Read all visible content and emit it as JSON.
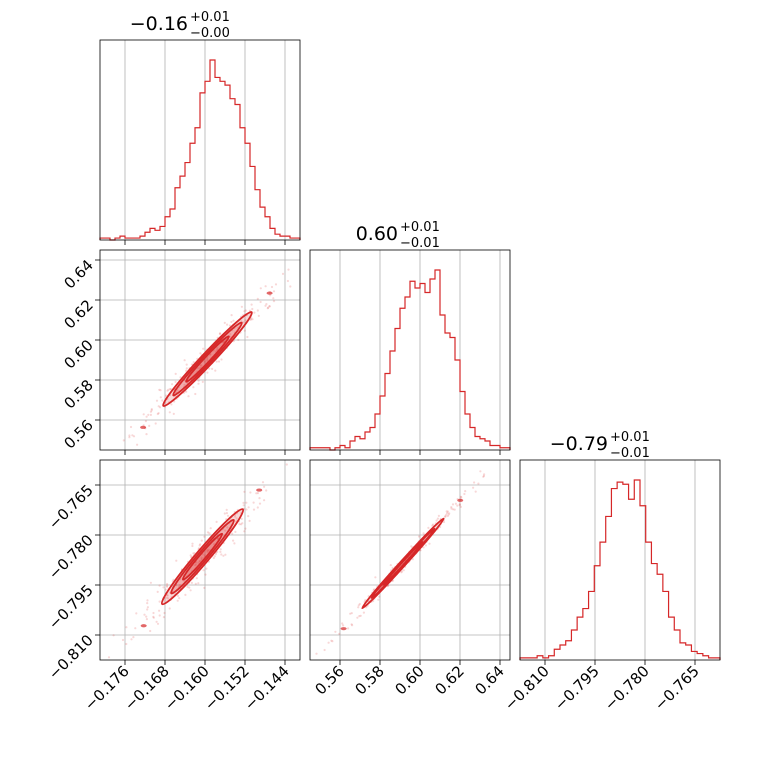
{
  "chart_data": {
    "type": "corner",
    "color": "#d62728",
    "grid": true,
    "parameters": [
      {
        "title_main": "−0.16",
        "title_plus": "+0.01",
        "title_minus": "−0.00",
        "range": [
          -0.181,
          -0.141
        ],
        "ticks": [
          -0.176,
          -0.168,
          -0.16,
          -0.152,
          -0.144
        ],
        "tick_labels": [
          "−0.176",
          "−0.168",
          "−0.160",
          "−0.152",
          "−0.144"
        ],
        "histogram": [
          1,
          1,
          0,
          1,
          2,
          1,
          1,
          1,
          2,
          4,
          6,
          5,
          7,
          12,
          16,
          27,
          33,
          40,
          50,
          58,
          76,
          82,
          93,
          84,
          82,
          80,
          73,
          70,
          58,
          50,
          38,
          26,
          17,
          12,
          6,
          3,
          2,
          2,
          1,
          1
        ],
        "hist_max": 93
      },
      {
        "title_main": "0.60",
        "title_plus": "+0.01",
        "title_minus": "−0.01",
        "range": [
          0.545,
          0.645
        ],
        "ticks": [
          0.56,
          0.58,
          0.6,
          0.62,
          0.64
        ],
        "tick_labels": [
          "0.56",
          "0.58",
          "0.60",
          "0.62",
          "0.64"
        ],
        "histogram": [
          1,
          1,
          1,
          1,
          0,
          1,
          2,
          1,
          4,
          6,
          5,
          8,
          10,
          16,
          24,
          34,
          44,
          54,
          63,
          68,
          75,
          72,
          74,
          70,
          76,
          80,
          60,
          52,
          50,
          40,
          26,
          16,
          10,
          6,
          5,
          4,
          2,
          2,
          1,
          1
        ],
        "hist_max": 80
      },
      {
        "title_main": "−0.79",
        "title_plus": "+0.01",
        "title_minus": "−0.01",
        "range": [
          -0.8175,
          -0.7575
        ],
        "ticks": [
          -0.81,
          -0.795,
          -0.78,
          -0.765
        ],
        "tick_labels": [
          "−0.810",
          "−0.795",
          "−0.780",
          "−0.765"
        ],
        "histogram": [
          1,
          1,
          1,
          2,
          1,
          2,
          5,
          7,
          9,
          14,
          20,
          24,
          32,
          44,
          55,
          67,
          80,
          83,
          82,
          75,
          84,
          72,
          55,
          45,
          40,
          32,
          20,
          14,
          8,
          7,
          4,
          3,
          2,
          1,
          1
        ],
        "hist_max": 84
      }
    ]
  }
}
